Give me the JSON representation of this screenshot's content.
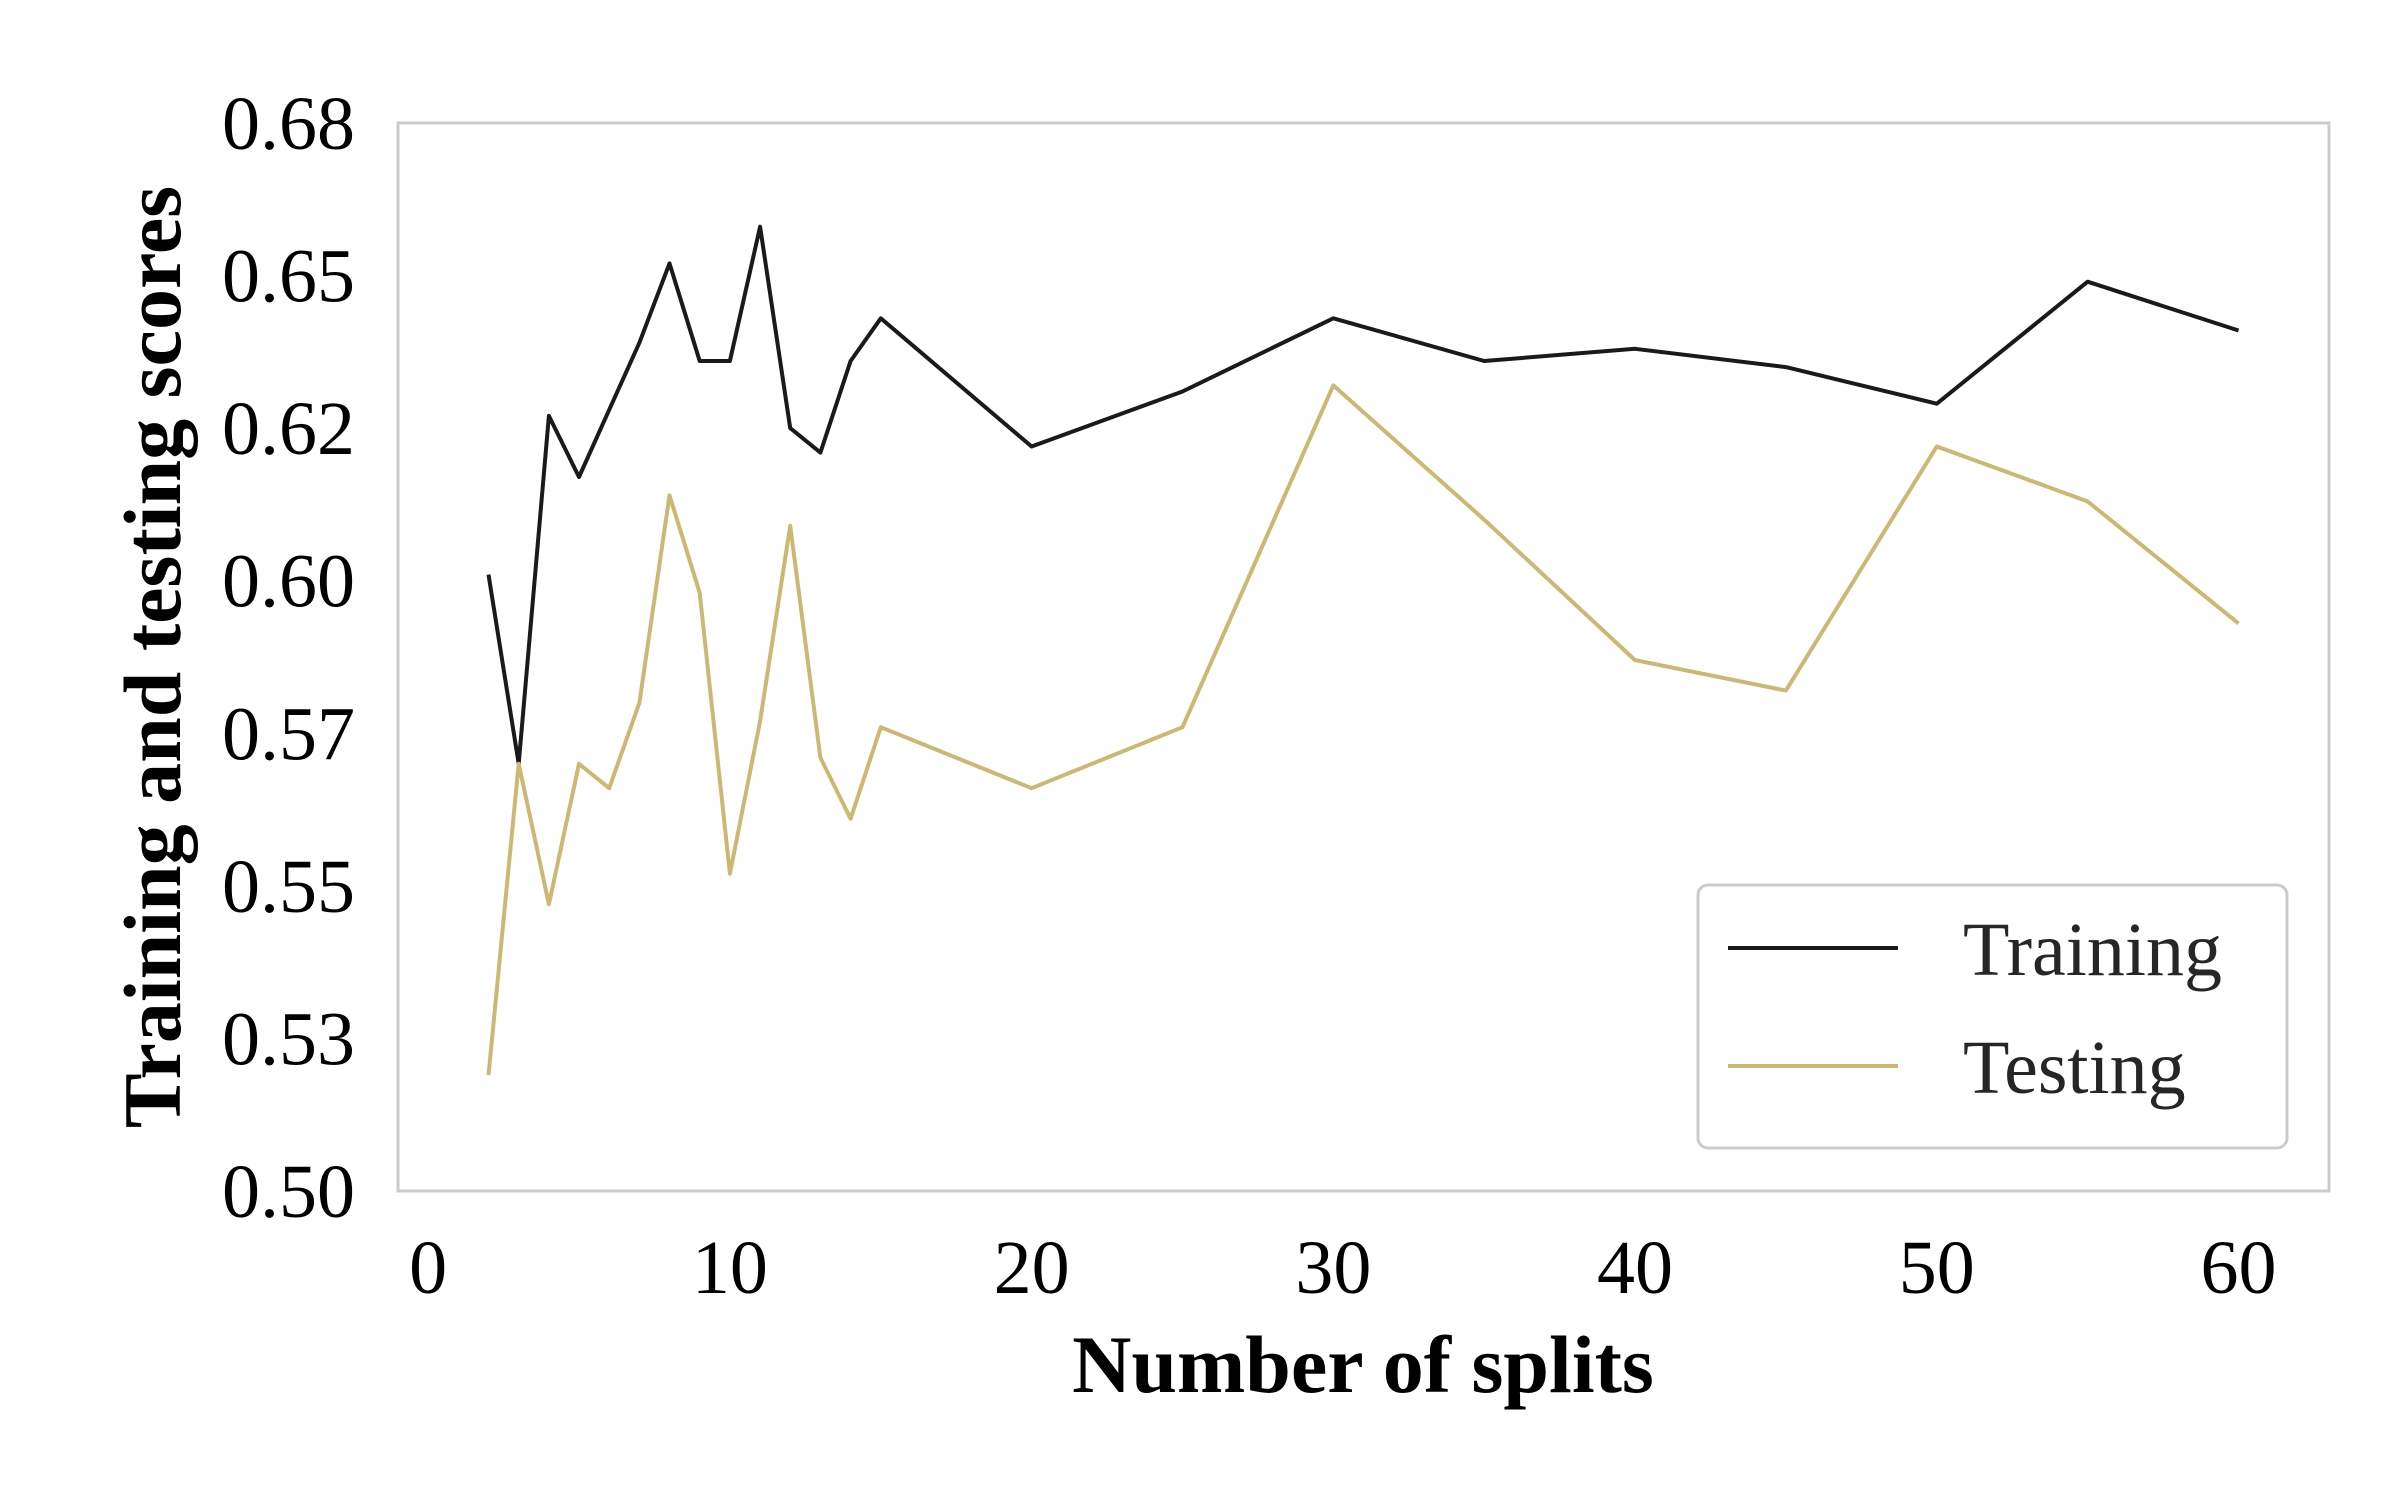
{
  "chart_data": {
    "type": "line",
    "xlabel": "Number of splits",
    "ylabel": "Training and testing scores",
    "xlim": [
      -1,
      63
    ],
    "ylim": [
      0.5,
      0.675
    ],
    "xticks": [
      0,
      10,
      20,
      30,
      40,
      50,
      60
    ],
    "xtick_labels": [
      "0",
      "10",
      "20",
      "30",
      "40",
      "50",
      "60"
    ],
    "yticks": [
      0.5,
      0.525,
      0.55,
      0.575,
      0.6,
      0.625,
      0.65,
      0.675
    ],
    "ytick_labels": [
      "0.50",
      "0.53",
      "0.55",
      "0.57",
      "0.60",
      "0.62",
      "0.65",
      "0.68"
    ],
    "grid": false,
    "legend_position": "lower-right",
    "x": [
      2,
      3,
      4,
      5,
      6,
      7,
      8,
      9,
      10,
      11,
      12,
      13,
      14,
      15,
      20,
      25,
      30,
      35,
      40,
      45,
      50,
      55,
      60
    ],
    "series": [
      {
        "name": "Training",
        "color": "#1a1a1a",
        "values": [
          0.601,
          0.57,
          0.627,
          0.617,
          0.628,
          0.639,
          0.652,
          0.636,
          0.636,
          0.658,
          0.625,
          0.621,
          0.636,
          0.643,
          0.622,
          0.631,
          0.643,
          0.636,
          0.638,
          0.635,
          0.629,
          0.649,
          0.641
        ]
      },
      {
        "name": "Testing",
        "color": "#cdb873",
        "values": [
          0.519,
          0.57,
          0.547,
          0.57,
          0.566,
          0.58,
          0.614,
          0.598,
          0.552,
          0.577,
          0.609,
          0.571,
          0.561,
          0.576,
          0.566,
          0.576,
          0.632,
          0.61,
          0.587,
          0.582,
          0.622,
          0.613,
          0.593
        ]
      }
    ]
  }
}
